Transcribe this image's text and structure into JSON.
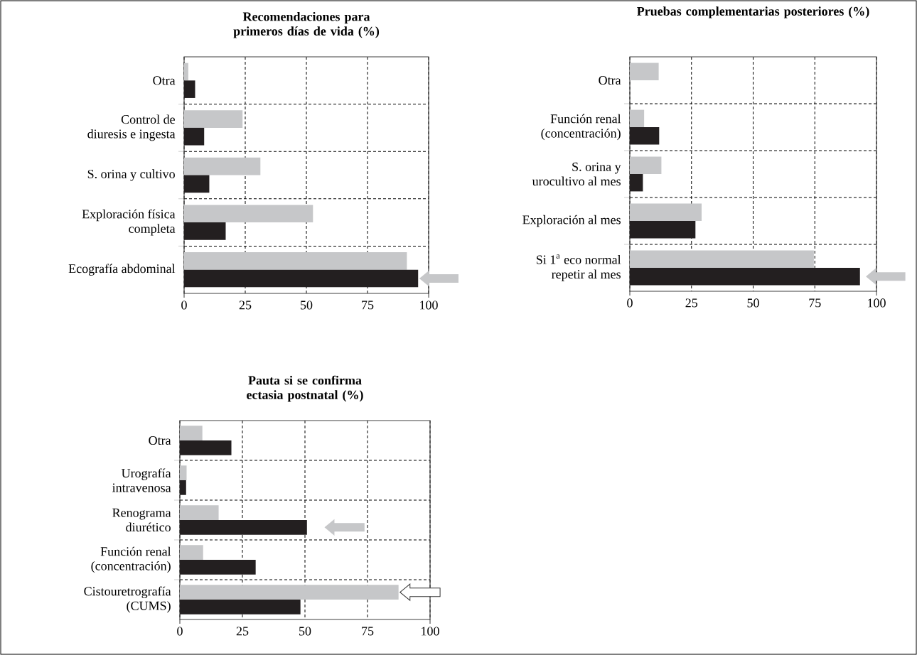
{
  "chart_data": [
    {
      "type": "bar",
      "orientation": "horizontal",
      "title": "Recomendaciones para primeros días de vida (%)",
      "categories": [
        "Otra",
        "Control de diuresis e ingesta",
        "S. orina y cultivo",
        "Exploración física completa",
        "Ecografía abdominal"
      ],
      "series": [
        {
          "color": "#c6c7c9",
          "values": [
            1.7,
            23.9,
            31.2,
            52.7,
            91.1
          ]
        },
        {
          "color": "#231f20",
          "values": [
            4.5,
            8.2,
            10.3,
            17.0,
            95.7
          ]
        }
      ],
      "xlim": [
        0,
        100
      ],
      "xticks": [
        0,
        25,
        50,
        75,
        100
      ],
      "grid": true
    },
    {
      "type": "bar",
      "orientation": "horizontal",
      "title": "Pruebas complementarias posteriores (%)",
      "categories": [
        "Otra",
        "Función renal (concentración)",
        "S. orina y urocultivo al mes",
        "Exploración al mes",
        "Si 1$^{a}$ eco normal repetir al mes"
      ],
      "series": [
        {
          "color": "#c6c7c9",
          "values": [
            11.7,
            5.8,
            12.8,
            29.1,
            74.6
          ]
        },
        {
          "color": "#231f20",
          "values": [
            null,
            11.9,
            5.3,
            26.6,
            93.3
          ]
        }
      ],
      "xlim": [
        0,
        100
      ],
      "xticks": [
        0,
        25,
        50,
        75,
        100
      ],
      "grid": true
    },
    {
      "type": "bar",
      "orientation": "horizontal",
      "title": "Pauta si se confirma ectasia postnatal (%)",
      "categories": [
        "Otra",
        "Urografía intravenosa",
        "Renograma diurético",
        "Función renal (concentración)",
        "Cistouretrografía (CUMS)"
      ],
      "series": [
        {
          "color": "#c6c7c9",
          "values": [
            9.0,
            2.7,
            15.5,
            9.3,
            87.4
          ]
        },
        {
          "color": "#231f20",
          "values": [
            20.6,
            2.5,
            50.8,
            30.3,
            48.2
          ]
        }
      ],
      "xlim": [
        0,
        100
      ],
      "xticks": [
        0,
        25,
        50,
        75,
        100
      ],
      "grid": true
    }
  ]
}
